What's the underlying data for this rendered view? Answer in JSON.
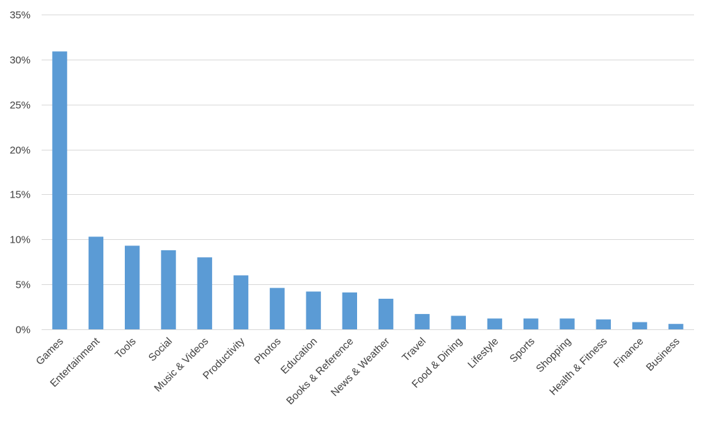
{
  "chart_data": {
    "type": "bar",
    "title": "",
    "xlabel": "",
    "ylabel": "",
    "ylim": [
      0,
      35
    ],
    "y_ticks": [
      0,
      5,
      10,
      15,
      20,
      25,
      30,
      35
    ],
    "y_tick_labels": [
      "0%",
      "5%",
      "10%",
      "15%",
      "20%",
      "25%",
      "30%",
      "35%"
    ],
    "grid": true,
    "legend": "none",
    "bar_color": "#5b9bd5",
    "categories": [
      "Games",
      "Entertainment",
      "Tools",
      "Social",
      "Music & Videos",
      "Productivity",
      "Photos",
      "Education",
      "Books & Reference",
      "News & Weather",
      "Travel",
      "Food & Dining",
      "Lifestyle",
      "Sports",
      "Shopping",
      "Health & Fitness",
      "Finance",
      "Business"
    ],
    "values": [
      30.9,
      10.3,
      9.3,
      8.8,
      8.0,
      6.0,
      4.6,
      4.2,
      4.1,
      3.4,
      1.7,
      1.5,
      1.2,
      1.2,
      1.2,
      1.1,
      0.8,
      0.6
    ]
  }
}
